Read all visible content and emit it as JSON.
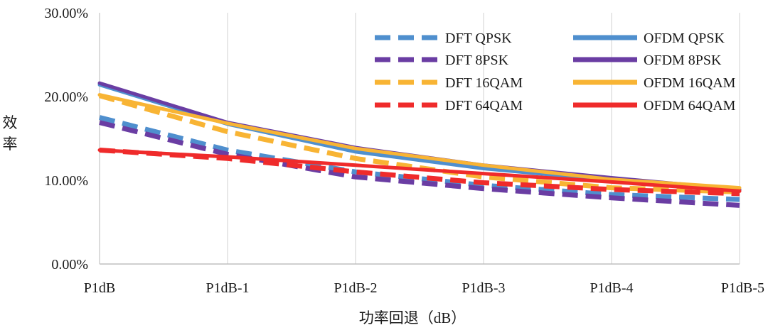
{
  "chart_data": {
    "type": "line",
    "title": "",
    "xlabel": "功率回退（dB）",
    "ylabel": "效率",
    "ylim": [
      0,
      30
    ],
    "yticks": [
      0,
      10,
      20,
      30
    ],
    "ytick_labels": [
      "0.00%",
      "10.00%",
      "20.00%",
      "30.00%"
    ],
    "grid": "vertical",
    "legend_position": "top-right",
    "categories": [
      "P1dB",
      "P1dB-1",
      "P1dB-2",
      "P1dB-3",
      "P1dB-4",
      "P1dB-5"
    ],
    "series": [
      {
        "name": "DFT QPSK",
        "style": "dashed",
        "color": "#4f8fce",
        "values": [
          17.5,
          13.6,
          11.0,
          9.4,
          8.3,
          7.7
        ]
      },
      {
        "name": "DFT 8PSK",
        "style": "dashed",
        "color": "#6a3da3",
        "values": [
          16.9,
          13.1,
          10.4,
          9.0,
          7.9,
          7.0
        ]
      },
      {
        "name": "DFT 16QAM",
        "style": "dashed",
        "color": "#f8b434",
        "values": [
          20.1,
          15.8,
          12.6,
          10.4,
          9.1,
          8.6
        ]
      },
      {
        "name": "DFT 64QAM",
        "style": "dashed",
        "color": "#ef2b2b",
        "values": [
          13.6,
          12.6,
          11.0,
          9.7,
          8.9,
          8.4
        ]
      },
      {
        "name": "OFDM QPSK",
        "style": "solid",
        "color": "#4f8fce",
        "values": [
          21.4,
          16.7,
          13.4,
          11.4,
          10.0,
          8.8
        ]
      },
      {
        "name": "OFDM 8PSK",
        "style": "solid",
        "color": "#6a3da3",
        "values": [
          21.6,
          16.9,
          13.9,
          11.8,
          10.3,
          8.9
        ]
      },
      {
        "name": "OFDM 16QAM",
        "style": "solid",
        "color": "#f8b434",
        "values": [
          20.2,
          16.8,
          13.8,
          11.8,
          10.1,
          9.1
        ]
      },
      {
        "name": "OFDM 64QAM",
        "style": "solid",
        "color": "#ef2b2b",
        "values": [
          13.6,
          12.8,
          11.8,
          10.8,
          9.8,
          8.7
        ]
      }
    ]
  }
}
